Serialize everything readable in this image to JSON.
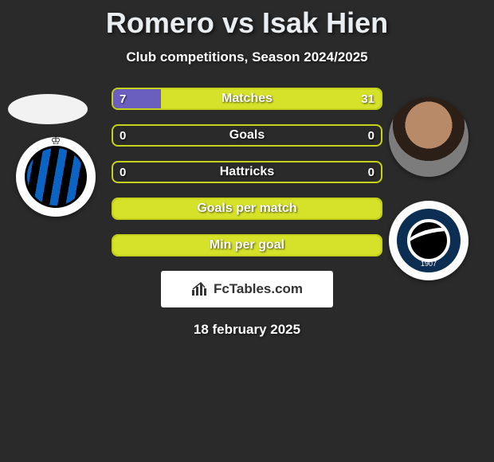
{
  "title": {
    "player1": "Romero",
    "vs": "vs",
    "player2": "Isak Hien",
    "color": "#e9eef2"
  },
  "subtitle": "Club competitions, Season 2024/2025",
  "date": "18 february 2025",
  "colors": {
    "accent_green": "#d6e22a",
    "accent_green_border": "#c6d21a",
    "purple_fill": "#6a5fbf",
    "background": "#2a2a2a",
    "text": "#ffffff"
  },
  "bars": [
    {
      "label": "Matches",
      "left": "7",
      "right": "31",
      "left_pct": 18,
      "right_pct": 82,
      "left_color": "#6a5fbf",
      "right_color": "#d6e22a",
      "full_color": null
    },
    {
      "label": "Goals",
      "left": "0",
      "right": "0",
      "left_pct": 0,
      "right_pct": 0,
      "left_color": null,
      "right_color": null,
      "full_color": null
    },
    {
      "label": "Hattricks",
      "left": "0",
      "right": "0",
      "left_pct": 0,
      "right_pct": 0,
      "left_color": null,
      "right_color": null,
      "full_color": null
    },
    {
      "label": "Goals per match",
      "left": "",
      "right": "",
      "left_pct": 0,
      "right_pct": 0,
      "left_color": null,
      "right_color": null,
      "full_color": "#d6e22a"
    },
    {
      "label": "Min per goal",
      "left": "",
      "right": "",
      "left_pct": 0,
      "right_pct": 0,
      "left_color": null,
      "right_color": null,
      "full_color": "#d6e22a"
    }
  ],
  "brand": "FcTables.com",
  "left_side": {
    "avatar_name": "player1-avatar",
    "crest_name": "club-brugge-crest"
  },
  "right_side": {
    "avatar_name": "player2-avatar",
    "crest_name": "atalanta-crest",
    "crest_year": "1907"
  }
}
